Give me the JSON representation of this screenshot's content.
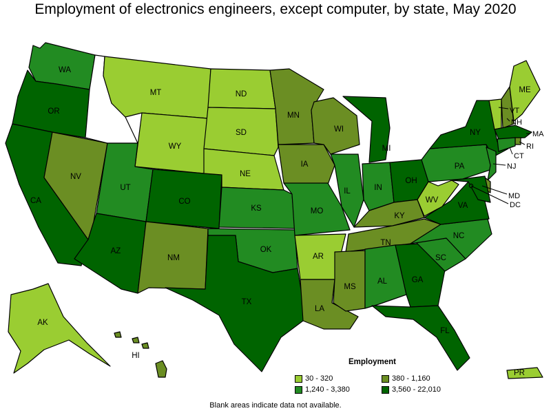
{
  "title": "Employment of electronics engineers, except computer, by state, May 2020",
  "footnote": "Blank areas indicate data not available.",
  "legend": {
    "title": "Employment",
    "items": [
      {
        "label": "30 - 320",
        "color": "#9acd32"
      },
      {
        "label": "380 - 1,160",
        "color": "#6b8e23"
      },
      {
        "label": "1,240 - 3,380",
        "color": "#228b22"
      },
      {
        "label": "3,560 - 22,010",
        "color": "#006400"
      }
    ]
  },
  "colors": {
    "c1": "#9acd32",
    "c2": "#6b8e23",
    "c3": "#228b22",
    "c4": "#006400",
    "na": "#ffffff"
  },
  "states": {
    "WA": {
      "label": "WA",
      "class": "c3"
    },
    "OR": {
      "label": "OR",
      "class": "c4"
    },
    "CA": {
      "label": "CA",
      "class": "c4"
    },
    "NV": {
      "label": "NV",
      "class": "c2"
    },
    "ID": {
      "label": "",
      "class": "na"
    },
    "MT": {
      "label": "MT",
      "class": "c1"
    },
    "WY": {
      "label": "WY",
      "class": "c1"
    },
    "UT": {
      "label": "UT",
      "class": "c3"
    },
    "AZ": {
      "label": "AZ",
      "class": "c4"
    },
    "CO": {
      "label": "CO",
      "class": "c4"
    },
    "NM": {
      "label": "NM",
      "class": "c2"
    },
    "ND": {
      "label": "ND",
      "class": "c1"
    },
    "SD": {
      "label": "SD",
      "class": "c1"
    },
    "NE": {
      "label": "NE",
      "class": "c1"
    },
    "KS": {
      "label": "KS",
      "class": "c3"
    },
    "OK": {
      "label": "OK",
      "class": "c3"
    },
    "TX": {
      "label": "TX",
      "class": "c4"
    },
    "MN": {
      "label": "MN",
      "class": "c2"
    },
    "IA": {
      "label": "IA",
      "class": "c2"
    },
    "MO": {
      "label": "MO",
      "class": "c3"
    },
    "AR": {
      "label": "AR",
      "class": "c1"
    },
    "LA": {
      "label": "LA",
      "class": "c2"
    },
    "WI": {
      "label": "WI",
      "class": "c2"
    },
    "IL": {
      "label": "IL",
      "class": "c3"
    },
    "MI": {
      "label": "MI",
      "class": "c4"
    },
    "IN": {
      "label": "IN",
      "class": "c3"
    },
    "OH": {
      "label": "OH",
      "class": "c4"
    },
    "KY": {
      "label": "KY",
      "class": "c2"
    },
    "TN": {
      "label": "TN",
      "class": "c2"
    },
    "MS": {
      "label": "MS",
      "class": "c2"
    },
    "AL": {
      "label": "AL",
      "class": "c3"
    },
    "GA": {
      "label": "GA",
      "class": "c4"
    },
    "FL": {
      "label": "FL",
      "class": "c4"
    },
    "SC": {
      "label": "SC",
      "class": "c3"
    },
    "NC": {
      "label": "NC",
      "class": "c3"
    },
    "VA": {
      "label": "VA",
      "class": "c4"
    },
    "WV": {
      "label": "WV",
      "class": "c1"
    },
    "PA": {
      "label": "PA",
      "class": "c3"
    },
    "NY": {
      "label": "NY",
      "class": "c4"
    },
    "VT": {
      "label": "VT",
      "class": "c1"
    },
    "NH": {
      "label": "NH",
      "class": "c2"
    },
    "ME": {
      "label": "ME",
      "class": "c1"
    },
    "MA": {
      "label": "MA",
      "class": "c4"
    },
    "RI": {
      "label": "RI",
      "class": "c2"
    },
    "CT": {
      "label": "CT",
      "class": "c3"
    },
    "NJ": {
      "label": "NJ",
      "class": "c3"
    },
    "DE": {
      "label": "",
      "class": "c2"
    },
    "MD": {
      "label": "MD",
      "class": "c4"
    },
    "DC": {
      "label": "DC",
      "class": "c4"
    },
    "AK": {
      "label": "AK",
      "class": "c1"
    },
    "HI": {
      "label": "HI",
      "class": "c2"
    },
    "PR": {
      "label": "PR",
      "class": "c1"
    }
  }
}
